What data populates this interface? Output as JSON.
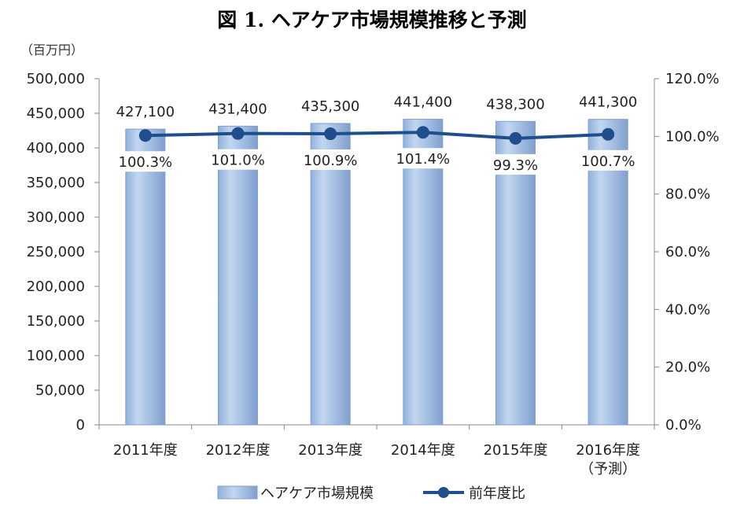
{
  "title": "図 1. ヘアケア市場規模推移と予測",
  "unit_label": "（百万円）",
  "chart_data": {
    "type": "bar",
    "title": "図 1. ヘアケア市場規模推移と予測",
    "categories": [
      "2011年度",
      "2012年度",
      "2013年度",
      "2014年度",
      "2015年度",
      "2016年度"
    ],
    "category_sublabels": [
      "",
      "",
      "",
      "",
      "",
      "（予測）"
    ],
    "series": [
      {
        "name": "ヘアケア市場規模",
        "type": "bar",
        "axis": "left",
        "values": [
          427100,
          431400,
          435300,
          441400,
          438300,
          441300
        ],
        "labels": [
          "427,100",
          "431,400",
          "435,300",
          "441,400",
          "438,300",
          "441,300"
        ],
        "color": "#a6c1e4"
      },
      {
        "name": "前年度比",
        "type": "line",
        "axis": "right",
        "values": [
          100.3,
          101.0,
          100.9,
          101.4,
          99.3,
          100.7
        ],
        "labels": [
          "100.3%",
          "101.0%",
          "100.9%",
          "101.4%",
          "99.3%",
          "100.7%"
        ],
        "color": "#1f4e8c"
      }
    ],
    "y_left": {
      "ylim": [
        0,
        500000
      ],
      "ticks": [
        0,
        50000,
        100000,
        150000,
        200000,
        250000,
        300000,
        350000,
        400000,
        450000,
        500000
      ],
      "tick_labels": [
        "0",
        "50,000",
        "100,000",
        "150,000",
        "200,000",
        "250,000",
        "300,000",
        "350,000",
        "400,000",
        "450,000",
        "500,000"
      ]
    },
    "y_right": {
      "ylim": [
        0,
        120
      ],
      "ticks": [
        0,
        20,
        40,
        60,
        80,
        100,
        120
      ],
      "tick_labels": [
        "0.0%",
        "20.0%",
        "40.0%",
        "60.0%",
        "80.0%",
        "100.0%",
        "120.0%"
      ]
    },
    "grid": false,
    "legend_position": "bottom"
  }
}
